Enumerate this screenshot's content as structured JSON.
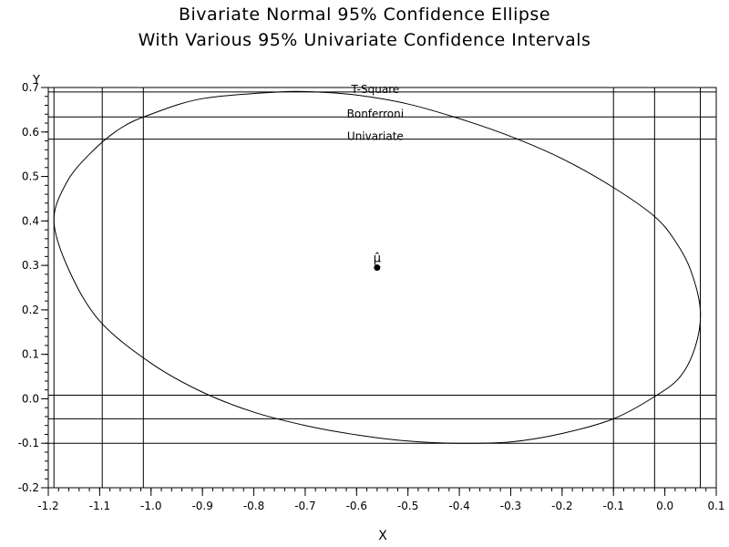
{
  "chart_data": {
    "type": "scatter",
    "title": "Bivariate Normal 95% Confidence Ellipse",
    "subtitle": "With Various 95% Univariate Confidence Intervals",
    "xlabel": "X",
    "ylabel": "Y",
    "xlim": [
      -1.2,
      0.1
    ],
    "ylim": [
      -0.2,
      0.7
    ],
    "x_ticks": [
      "-1.2",
      "-1.1",
      "-1.0",
      "-0.9",
      "-0.8",
      "-0.7",
      "-0.6",
      "-0.5",
      "-0.4",
      "-0.3",
      "-0.2",
      "-0.1",
      "0.0",
      "0.1"
    ],
    "y_ticks": [
      "-0.2",
      "-0.1",
      "0.0",
      "0.1",
      "0.2",
      "0.3",
      "0.4",
      "0.5",
      "0.6",
      "0.7"
    ],
    "ellipse": [
      {
        "x": -1.189,
        "y": 0.4
      },
      {
        "x": -1.165,
        "y": 0.485
      },
      {
        "x": -1.12,
        "y": 0.55
      },
      {
        "x": -1.06,
        "y": 0.608
      },
      {
        "x": -1.0,
        "y": 0.64
      },
      {
        "x": -0.9,
        "y": 0.675
      },
      {
        "x": -0.75,
        "y": 0.69
      },
      {
        "x": -0.68,
        "y": 0.69
      },
      {
        "x": -0.6,
        "y": 0.683
      },
      {
        "x": -0.5,
        "y": 0.663
      },
      {
        "x": -0.4,
        "y": 0.63
      },
      {
        "x": -0.3,
        "y": 0.59
      },
      {
        "x": -0.2,
        "y": 0.54
      },
      {
        "x": -0.1,
        "y": 0.475
      },
      {
        "x": -0.02,
        "y": 0.41
      },
      {
        "x": 0.02,
        "y": 0.355
      },
      {
        "x": 0.05,
        "y": 0.29
      },
      {
        "x": 0.069,
        "y": 0.2
      },
      {
        "x": 0.06,
        "y": 0.12
      },
      {
        "x": 0.03,
        "y": 0.05
      },
      {
        "x": -0.02,
        "y": 0.005
      },
      {
        "x": -0.1,
        "y": -0.045
      },
      {
        "x": -0.2,
        "y": -0.078
      },
      {
        "x": -0.3,
        "y": -0.097
      },
      {
        "x": -0.4,
        "y": -0.1
      },
      {
        "x": -0.5,
        "y": -0.095
      },
      {
        "x": -0.6,
        "y": -0.081
      },
      {
        "x": -0.7,
        "y": -0.06
      },
      {
        "x": -0.8,
        "y": -0.03
      },
      {
        "x": -0.9,
        "y": 0.015
      },
      {
        "x": -1.0,
        "y": 0.08
      },
      {
        "x": -1.1,
        "y": 0.175
      },
      {
        "x": -1.16,
        "y": 0.29
      },
      {
        "x": -1.189,
        "y": 0.4
      }
    ],
    "center": {
      "x": -0.56,
      "y": 0.295,
      "label": "μ̂"
    },
    "intervals": [
      {
        "name": "T-Square",
        "x": [
          -1.189,
          0.069
        ],
        "y": [
          -0.1,
          0.69
        ]
      },
      {
        "name": "Bonferroni",
        "x": [
          -1.095,
          -0.02
        ],
        "y": [
          -0.045,
          0.634
        ]
      },
      {
        "name": "Univariate",
        "x": [
          -1.015,
          -0.1
        ],
        "y": [
          0.008,
          0.584
        ]
      }
    ],
    "grid": false,
    "legend": "none"
  }
}
